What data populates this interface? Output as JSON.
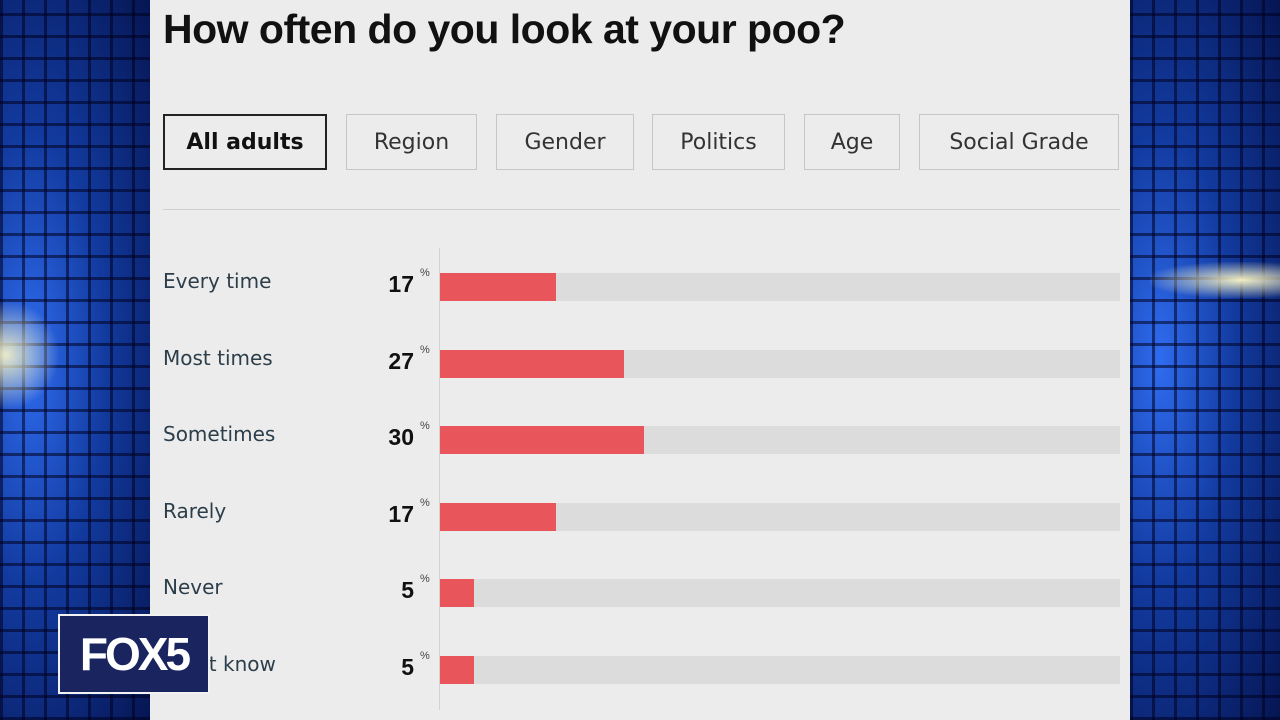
{
  "title": "How often do you look at your poo?",
  "tabs": [
    "All adults",
    "Region",
    "Gender",
    "Politics",
    "Age",
    "Social Grade"
  ],
  "active_tab": "All adults",
  "unit_symbol": "%",
  "colors": {
    "bar": "#e8555a",
    "track": "#dcdcdc",
    "panel": "#ececec"
  },
  "chart_data": {
    "type": "bar",
    "orientation": "horizontal",
    "title": "How often do you look at your poo?",
    "categories": [
      "Every time",
      "Most times",
      "Sometimes",
      "Rarely",
      "Never",
      "Don't know"
    ],
    "values": [
      17,
      27,
      30,
      17,
      5,
      5
    ],
    "value_labels": [
      "17",
      "27",
      "30",
      "17",
      "5",
      "5"
    ],
    "unit": "%",
    "xlim": [
      0,
      100
    ],
    "grid": false
  },
  "logo": {
    "text": "FOX5"
  }
}
